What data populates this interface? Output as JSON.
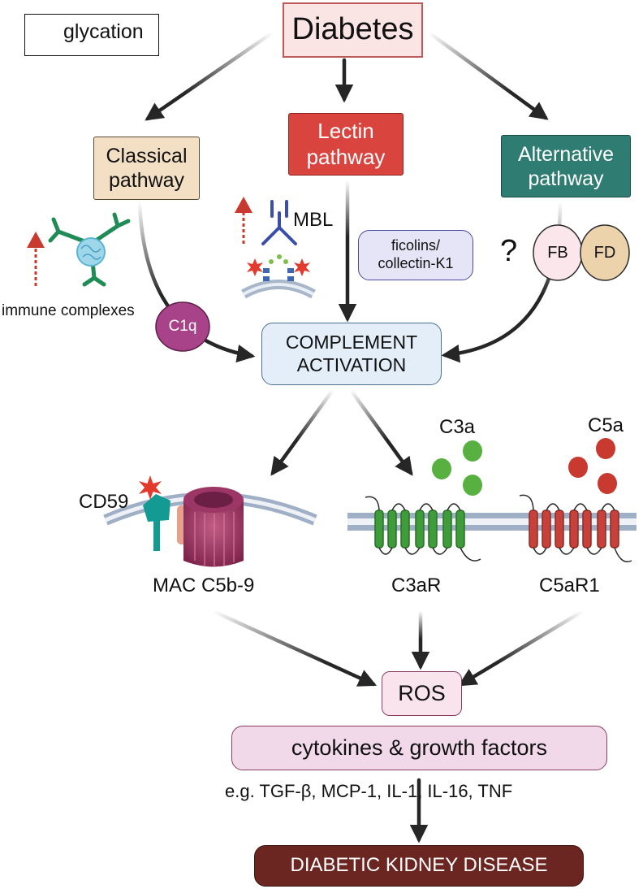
{
  "legend": {
    "label": "glycation"
  },
  "nodes": {
    "diabetes": "Diabetes",
    "classical": "Classical\npathway",
    "lectin": "Lectin\npathway",
    "alternative": "Alternative\npathway",
    "complement": "COMPLEMENT\nACTIVATION",
    "ros": "ROS",
    "cytokines": "cytokines & growth factors",
    "dkd": "DIABETIC KIDNEY DISEASE"
  },
  "labels": {
    "mbl": "MBL",
    "ficolins": "ficolins/\ncollectin-K1",
    "question": "?",
    "fb": "FB",
    "fd": "FD",
    "immune_complexes": "immune complexes",
    "c1q": "C1q",
    "c3a": "C3a",
    "c5a": "C5a",
    "cd59": "CD59",
    "mac": "MAC C5b-9",
    "c3ar": "C3aR",
    "c5ar1": "C5aR1",
    "examples": "e.g. TGF-β, MCP-1, IL-1, IL-16, TNF"
  },
  "colors": {
    "glycation_star": "#e23b2e",
    "diabetes_bg": "#fbe4e4",
    "classical_bg": "#f3dfc3",
    "lectin_bg": "#d9443f",
    "alternative_bg": "#2e7c72",
    "complement_bg": "#e3eef8",
    "ros_bg": "#f9e4ee",
    "dkd_bg": "#6b2621",
    "c3a_green": "#58b041",
    "c5a_red": "#c8392f",
    "c1q_purple": "#a8438a"
  }
}
